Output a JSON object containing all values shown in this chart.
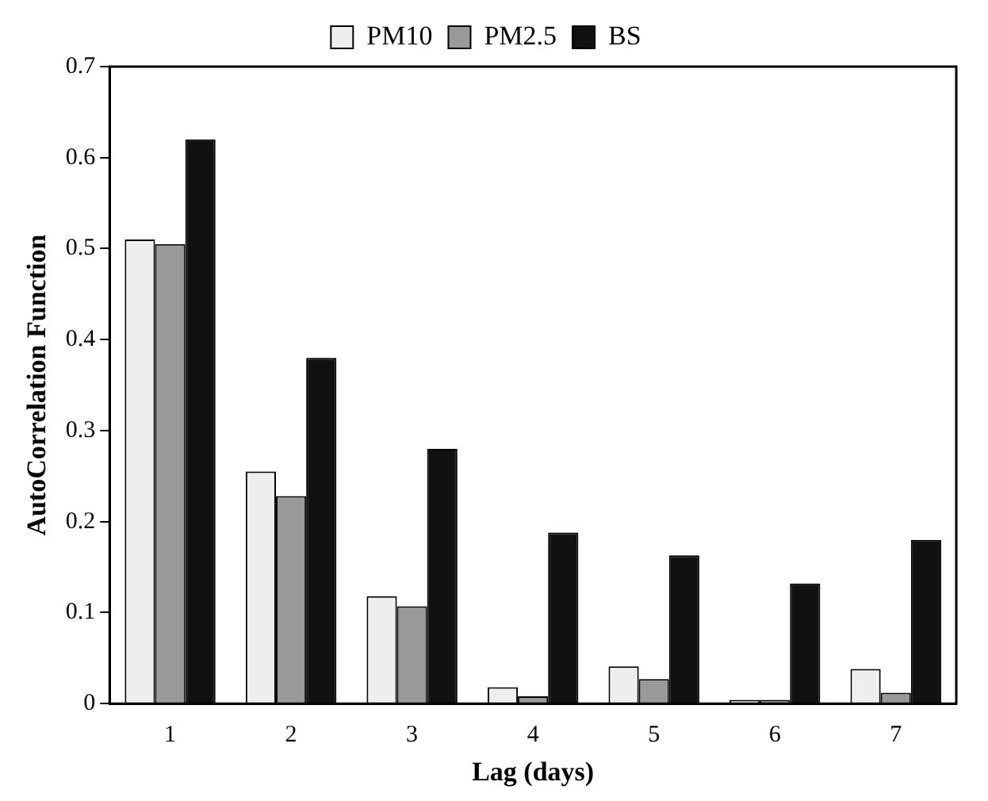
{
  "chart_data": {
    "type": "bar",
    "xlabel": "Lag (days)",
    "ylabel": "AutoCorrelation Function",
    "categories": [
      "1",
      "2",
      "3",
      "4",
      "5",
      "6",
      "7"
    ],
    "series": [
      {
        "name": "PM10",
        "color": "#eeeeee",
        "values": [
          0.51,
          0.255,
          0.118,
          0.018,
          0.041,
          0.004,
          0.038
        ]
      },
      {
        "name": "PM2.5",
        "color": "#999999",
        "values": [
          0.505,
          0.228,
          0.107,
          0.008,
          0.027,
          0.004,
          0.012
        ]
      },
      {
        "name": "BS",
        "color": "#111111",
        "values": [
          0.62,
          0.38,
          0.28,
          0.188,
          0.163,
          0.132,
          0.18
        ]
      }
    ],
    "ylim": [
      0,
      0.7
    ],
    "yticks": [
      0,
      0.1,
      0.2,
      0.3,
      0.4,
      0.5,
      0.6,
      0.7
    ],
    "grid": false,
    "legend": "top"
  }
}
